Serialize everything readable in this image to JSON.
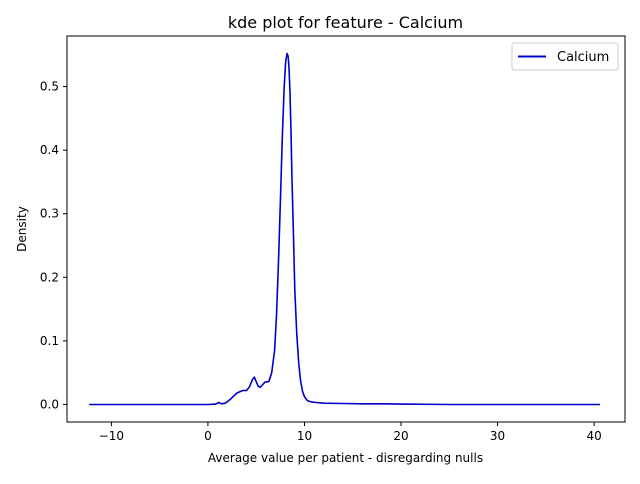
{
  "chart_data": {
    "type": "line",
    "title": "kde plot for feature -  Calcium",
    "xlabel": "Average value per patient - disregarding nulls",
    "ylabel": "Density",
    "xlim": [
      -14.6,
      43.2
    ],
    "ylim": [
      -0.0276,
      0.5796
    ],
    "x_ticks": [
      -10,
      0,
      10,
      20,
      30,
      40
    ],
    "x_tick_labels": [
      "−10",
      "0",
      "10",
      "20",
      "30",
      "40"
    ],
    "y_ticks": [
      0.0,
      0.1,
      0.2,
      0.3,
      0.4,
      0.5
    ],
    "y_tick_labels": [
      "0.0",
      "0.1",
      "0.2",
      "0.3",
      "0.4",
      "0.5"
    ],
    "grid": false,
    "legend": {
      "position": "top-right",
      "entries": [
        "Calcium"
      ]
    },
    "series": [
      {
        "name": "Calcium",
        "color": "#0000cc",
        "x": [
          -12.3,
          -5.0,
          0.0,
          0.8,
          1.1,
          1.4,
          1.8,
          2.3,
          3.0,
          3.6,
          4.0,
          4.3,
          4.6,
          4.8,
          5.0,
          5.2,
          5.4,
          5.6,
          5.9,
          6.3,
          6.6,
          6.9,
          7.1,
          7.3,
          7.5,
          7.7,
          7.9,
          8.05,
          8.2,
          8.3,
          8.4,
          8.5,
          8.6,
          8.7,
          8.85,
          9.0,
          9.2,
          9.4,
          9.6,
          9.8,
          10.0,
          10.3,
          10.7,
          11.2,
          12.0,
          14.0,
          16.0,
          18.0,
          20.0,
          25.0,
          30.0,
          35.0,
          40.6
        ],
        "y": [
          0.0,
          0.0,
          0.0,
          0.0005,
          0.003,
          0.001,
          0.002,
          0.008,
          0.018,
          0.022,
          0.022,
          0.028,
          0.039,
          0.043,
          0.036,
          0.029,
          0.027,
          0.03,
          0.035,
          0.036,
          0.05,
          0.085,
          0.14,
          0.22,
          0.32,
          0.42,
          0.5,
          0.54,
          0.552,
          0.548,
          0.53,
          0.49,
          0.43,
          0.36,
          0.27,
          0.18,
          0.11,
          0.065,
          0.037,
          0.02,
          0.012,
          0.006,
          0.004,
          0.003,
          0.002,
          0.0015,
          0.001,
          0.001,
          0.0005,
          0.0,
          0.0,
          0.0,
          0.0
        ]
      }
    ]
  }
}
